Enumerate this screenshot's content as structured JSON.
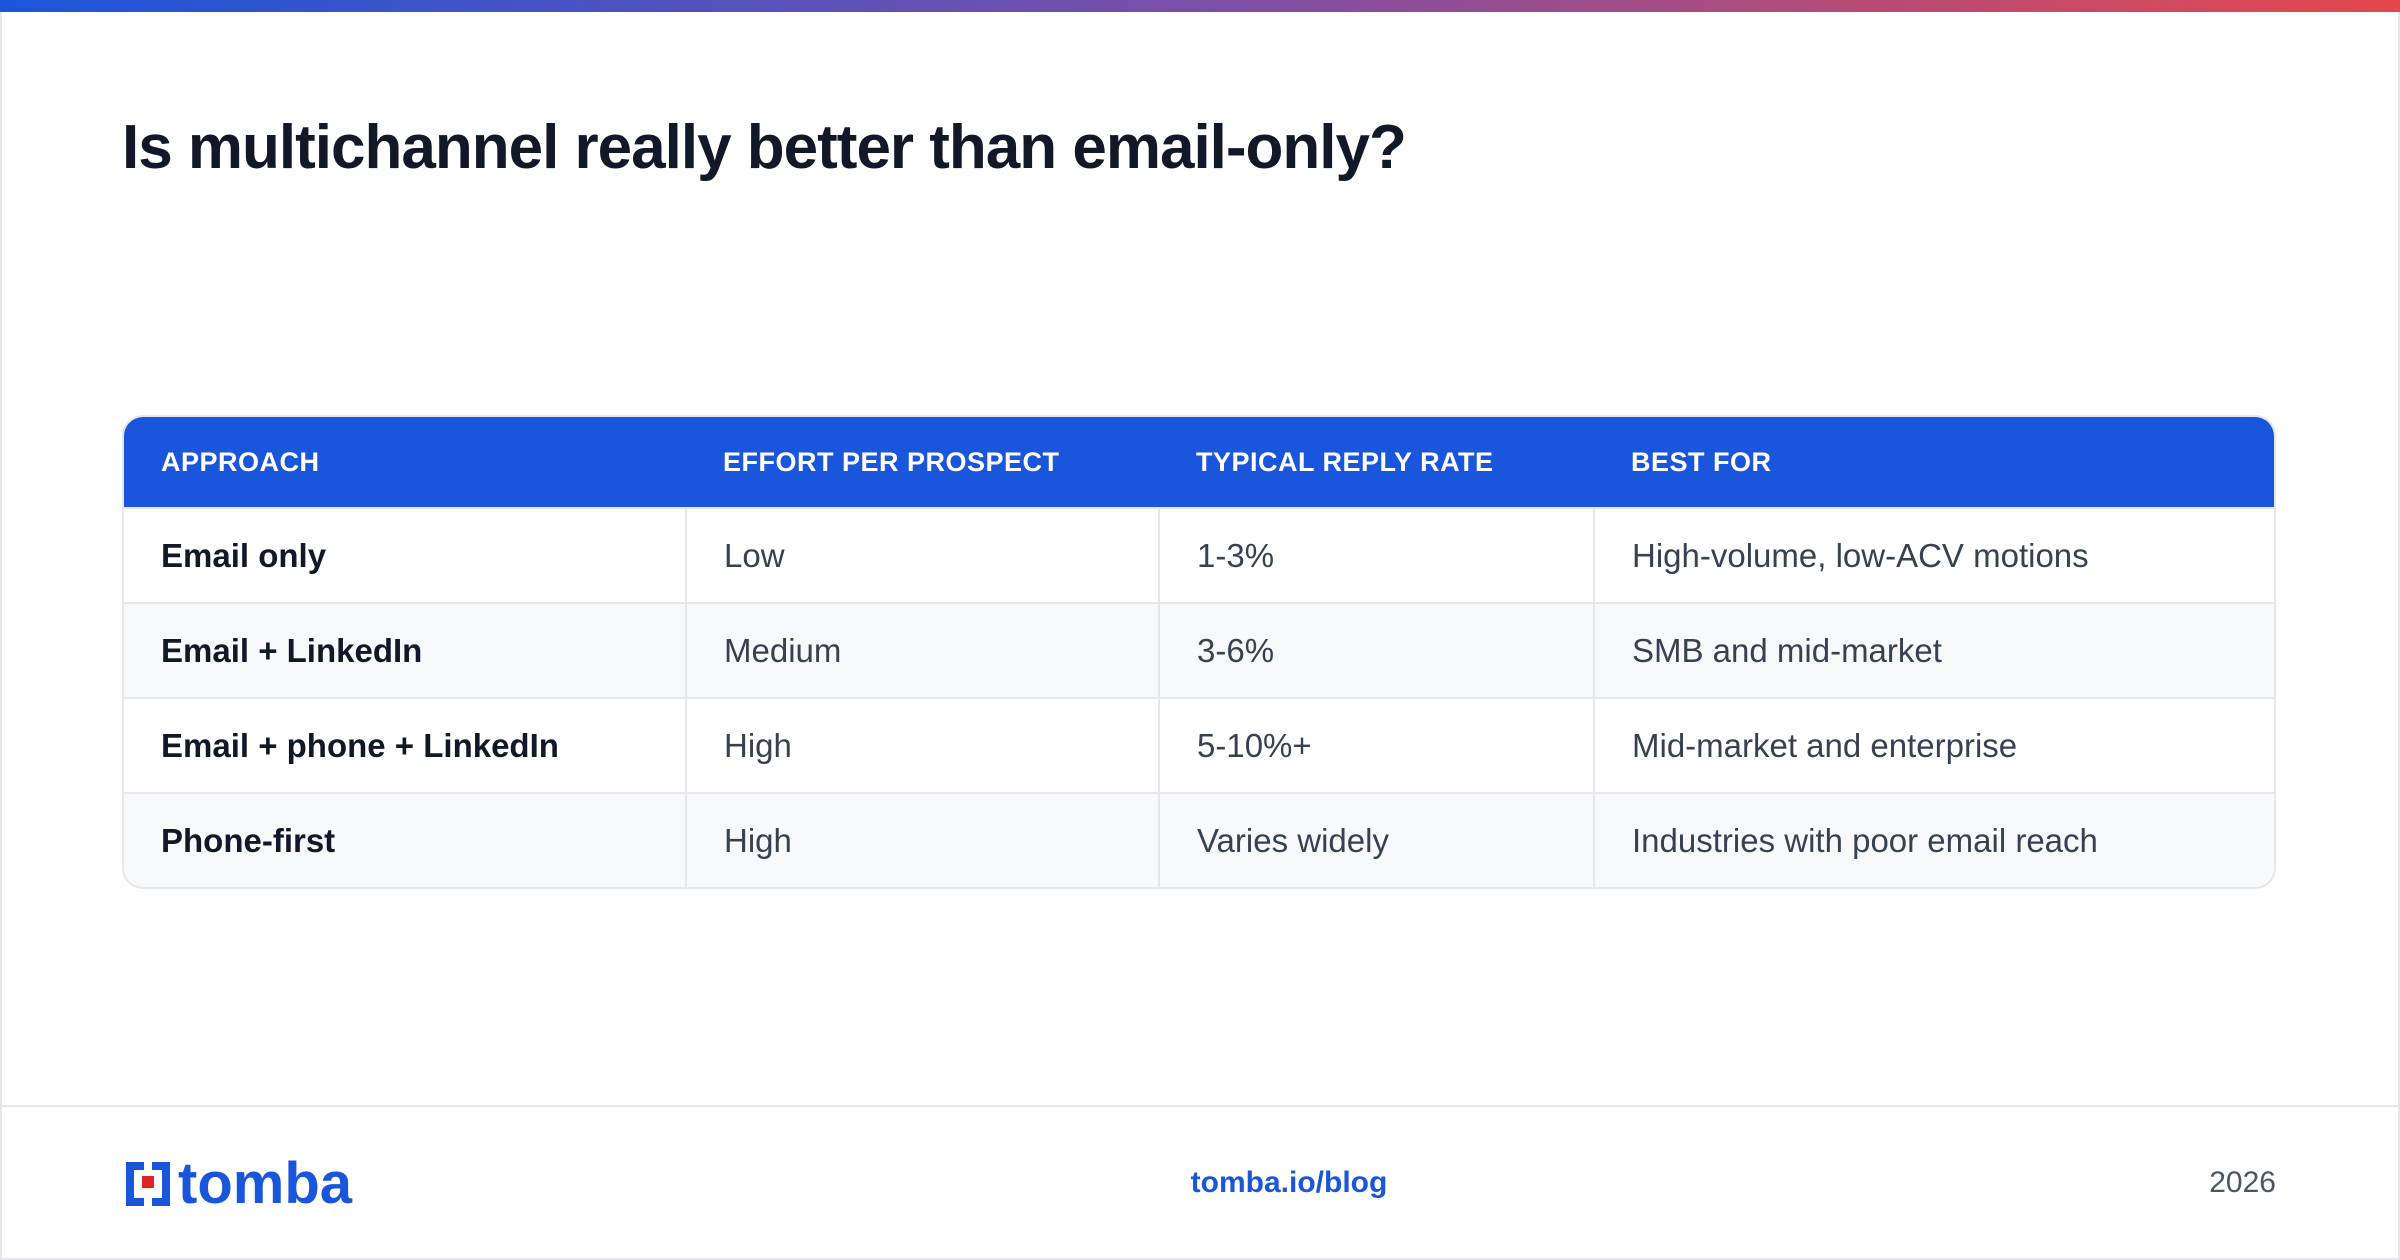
{
  "header": {
    "title": "Is multichannel really better than email-only?"
  },
  "table": {
    "columns": [
      "APPROACH",
      "EFFORT PER PROSPECT",
      "TYPICAL REPLY RATE",
      "BEST FOR"
    ],
    "rows": [
      [
        "Email only",
        "Low",
        "1-3%",
        "High-volume, low-ACV motions"
      ],
      [
        "Email + LinkedIn",
        "Medium",
        "3-6%",
        "SMB and mid-market"
      ],
      [
        "Email + phone + LinkedIn",
        "High",
        "5-10%+",
        "Mid-market and enterprise"
      ],
      [
        "Phone-first",
        "High",
        "Varies widely",
        "Industries with poor email reach"
      ]
    ]
  },
  "footer": {
    "logo": "tomba",
    "link": "tomba.io/blog",
    "year": "2026"
  }
}
